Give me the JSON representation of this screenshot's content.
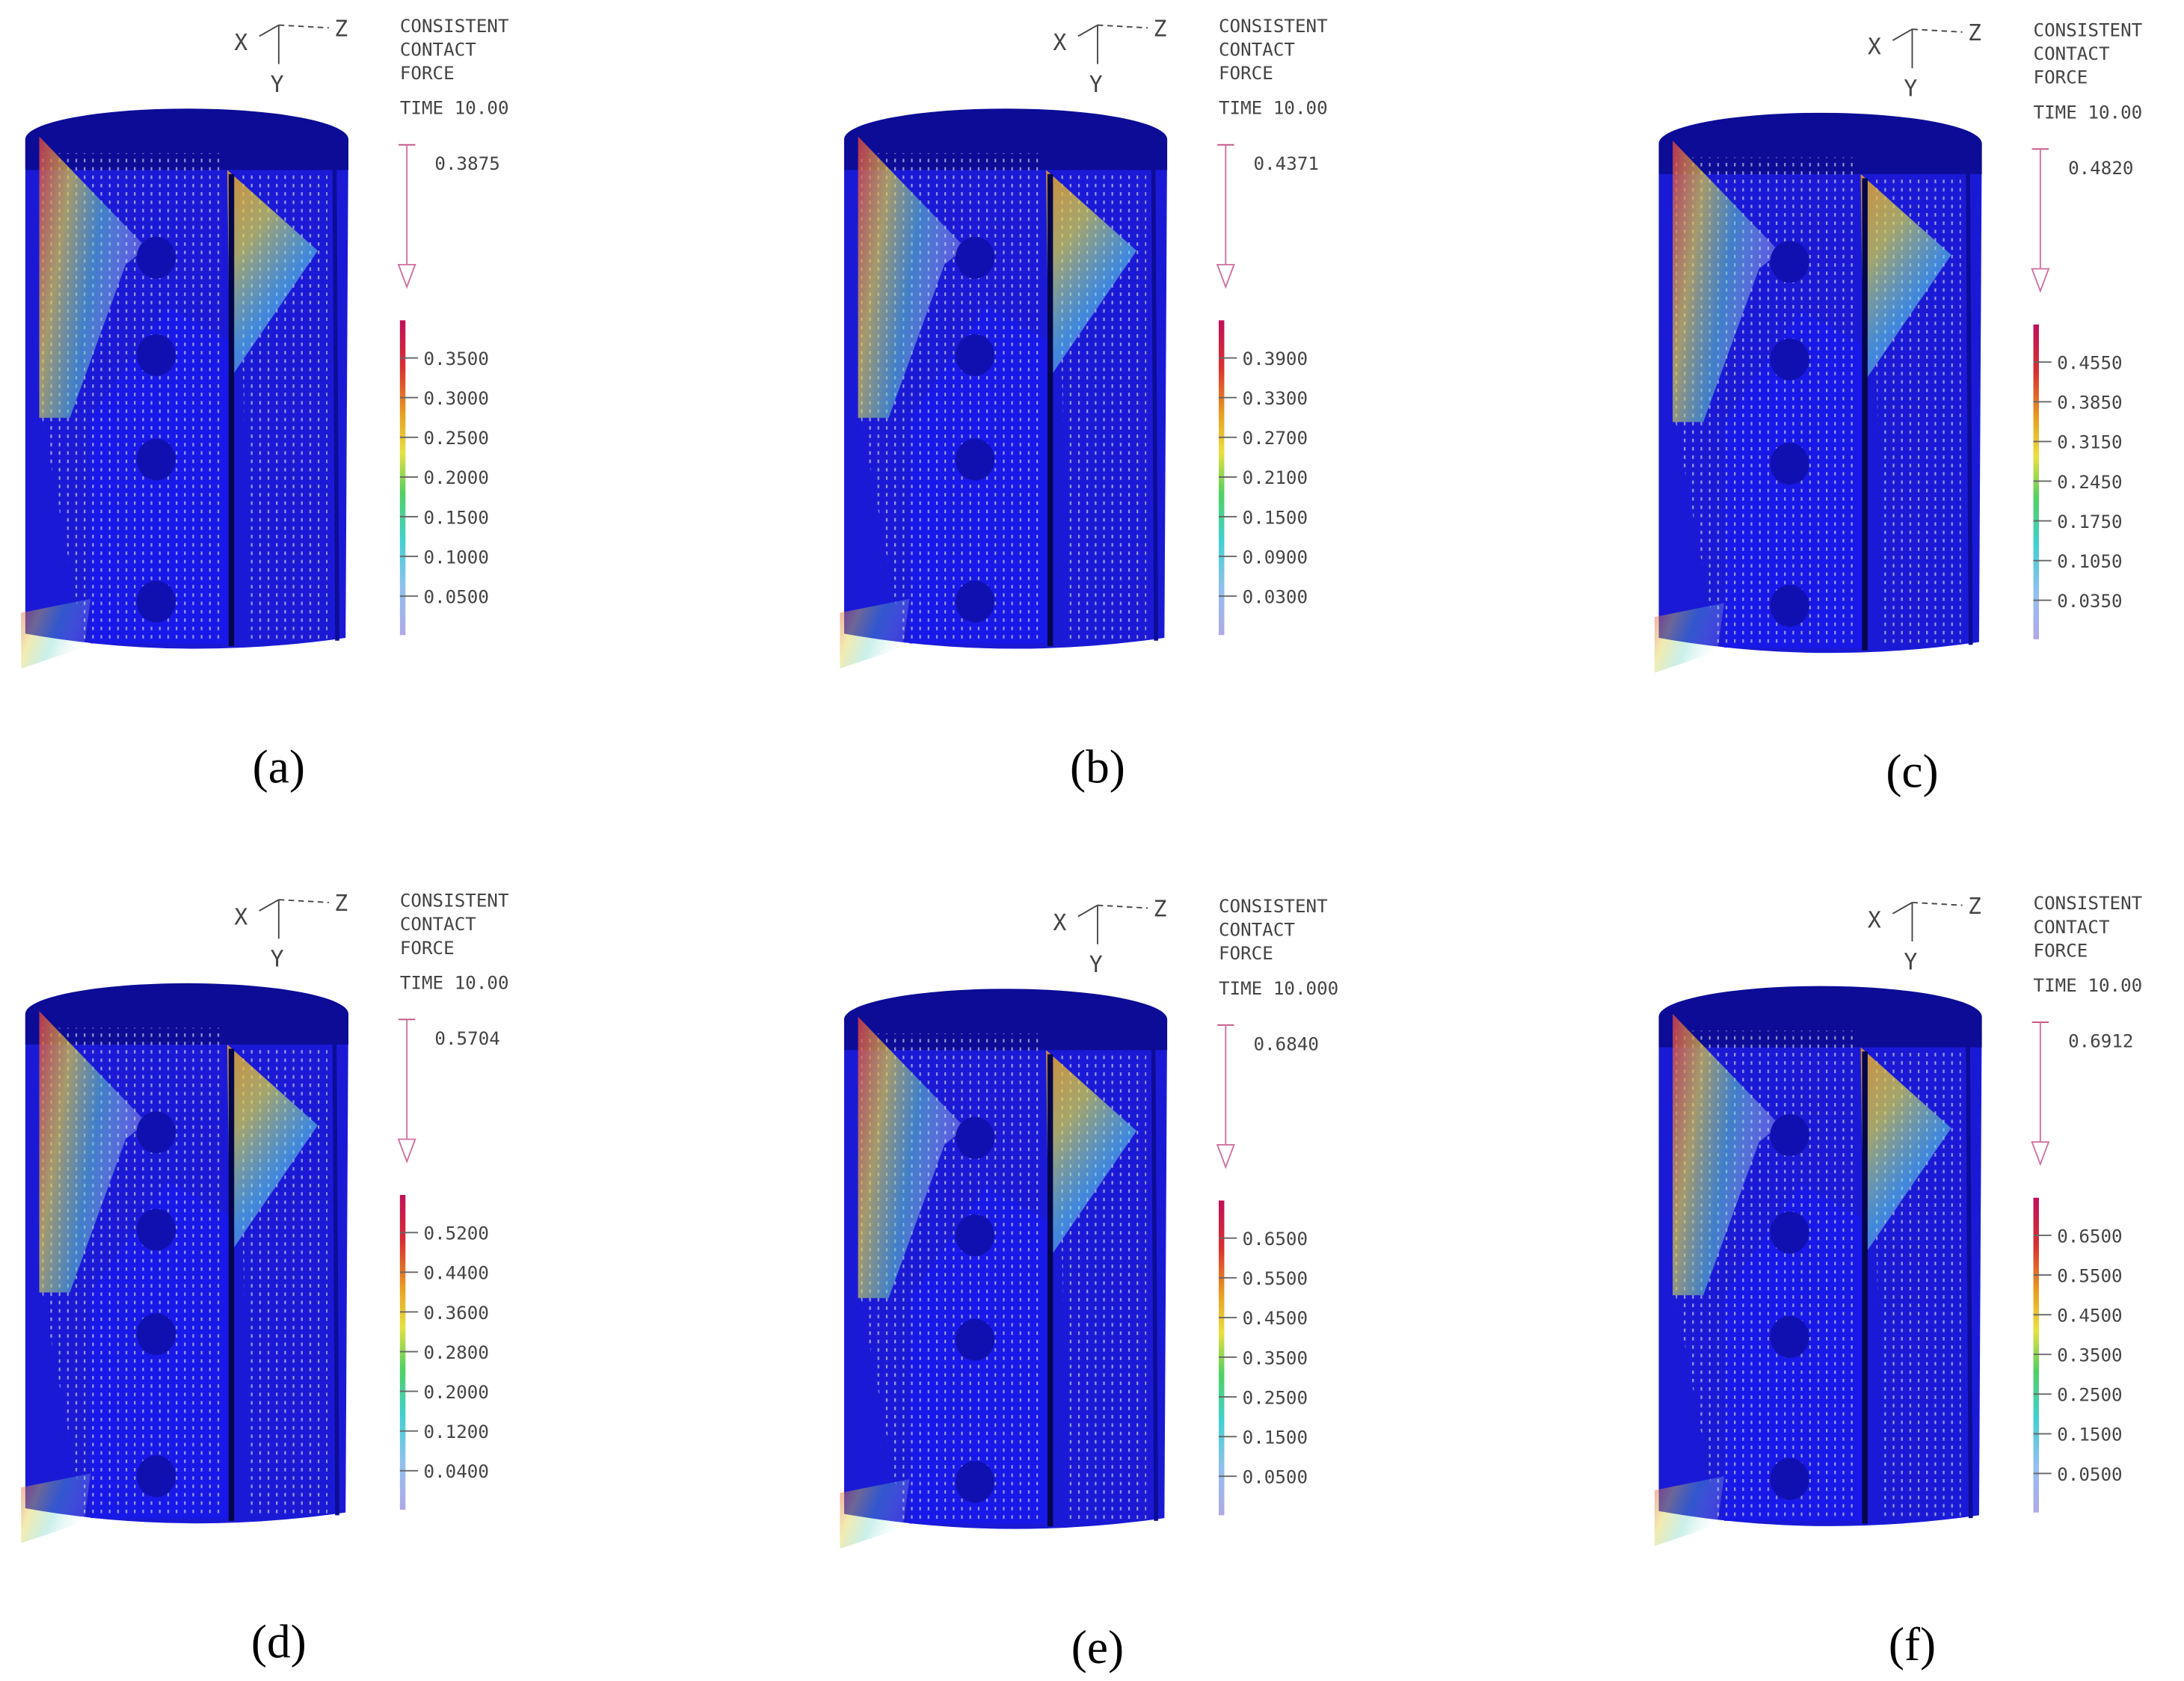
{
  "panels": [
    {
      "caption": "(a)",
      "axes": {
        "x": "X",
        "y": "Y",
        "z": "Z"
      },
      "title": [
        "CONSISTENT",
        "CONTACT",
        "FORCE"
      ],
      "time": "TIME 10.00",
      "max": "0.3875",
      "legend": [
        "0.3500",
        "0.3000",
        "0.2500",
        "0.2000",
        "0.1500",
        "0.1000",
        "0.0500"
      ]
    },
    {
      "caption": "(b)",
      "axes": {
        "x": "X",
        "y": "Y",
        "z": "Z"
      },
      "title": [
        "CONSISTENT",
        "CONTACT",
        "FORCE"
      ],
      "time": "TIME 10.00",
      "max": "0.4371",
      "legend": [
        "0.3900",
        "0.3300",
        "0.2700",
        "0.2100",
        "0.1500",
        "0.0900",
        "0.0300"
      ]
    },
    {
      "caption": "(c)",
      "axes": {
        "x": "X",
        "y": "Y",
        "z": "Z"
      },
      "title": [
        "CONSISTENT",
        "CONTACT",
        "FORCE"
      ],
      "time": "TIME 10.00",
      "max": "0.4820",
      "legend": [
        "0.4550",
        "0.3850",
        "0.3150",
        "0.2450",
        "0.1750",
        "0.1050",
        "0.0350"
      ]
    },
    {
      "caption": "(d)",
      "axes": {
        "x": "X",
        "y": "Y",
        "z": "Z"
      },
      "title": [
        "CONSISTENT",
        "CONTACT",
        "FORCE"
      ],
      "time": "TIME 10.00",
      "max": "0.5704",
      "legend": [
        "0.5200",
        "0.4400",
        "0.3600",
        "0.2800",
        "0.2000",
        "0.1200",
        "0.0400"
      ]
    },
    {
      "caption": "(e)",
      "axes": {
        "x": "X",
        "y": "Y",
        "z": "Z"
      },
      "title": [
        "CONSISTENT",
        "CONTACT",
        "FORCE"
      ],
      "time": "TIME 10.000",
      "max": "0.6840",
      "legend": [
        "0.6500",
        "0.5500",
        "0.4500",
        "0.3500",
        "0.2500",
        "0.1500",
        "0.0500"
      ]
    },
    {
      "caption": "(f)",
      "axes": {
        "x": "X",
        "y": "Y",
        "z": "Z"
      },
      "title": [
        "CONSISTENT",
        "CONTACT",
        "FORCE"
      ],
      "time": "TIME 10.00",
      "max": "0.6912",
      "legend": [
        "0.6500",
        "0.5500",
        "0.4500",
        "0.3500",
        "0.2500",
        "0.1500",
        "0.0500"
      ]
    }
  ]
}
